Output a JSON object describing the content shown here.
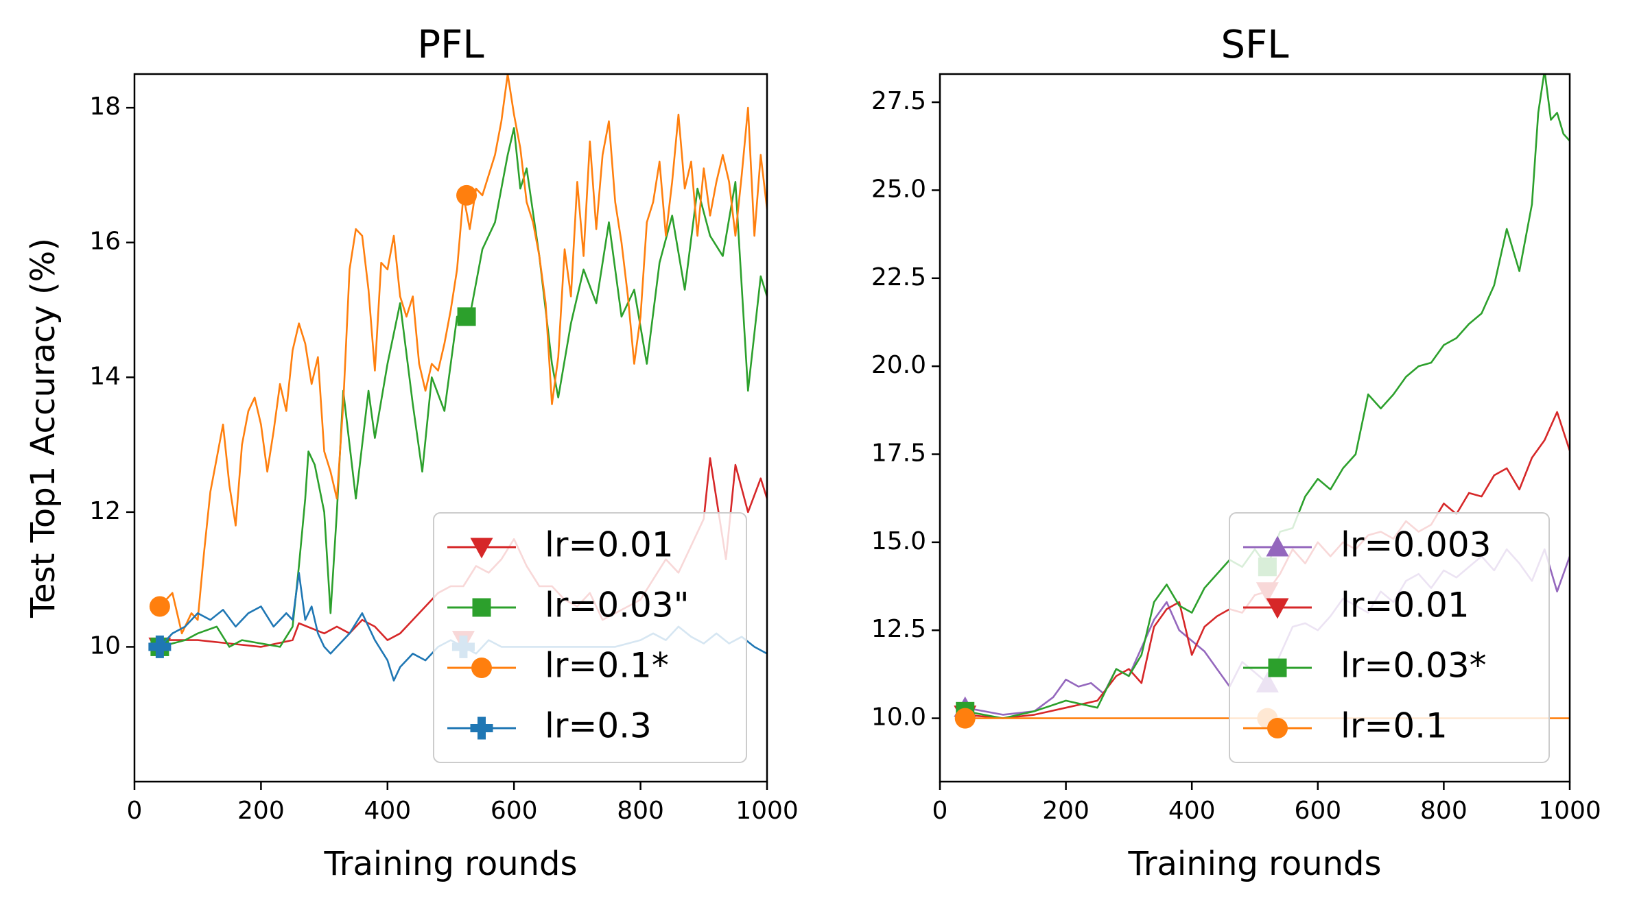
{
  "chart_data": [
    {
      "type": "line",
      "title": "PFL",
      "xlabel": "Training rounds",
      "ylabel": "Test Top1 Accuracy (%)",
      "xlim": [
        0,
        1000
      ],
      "ylim": [
        8.0,
        18.5
      ],
      "xticks": [
        0,
        200,
        400,
        600,
        800,
        1000
      ],
      "xtick_labels": [
        "0",
        "200",
        "400",
        "600",
        "800",
        "1000"
      ],
      "yticks": [
        10,
        12,
        14,
        16,
        18
      ],
      "ytick_labels": [
        "10",
        "12",
        "14",
        "16",
        "18"
      ],
      "grid": false,
      "legend_position": "lower-right",
      "series": [
        {
          "name": "lr=0.01",
          "color": "#d62728",
          "marker": "triangle-down",
          "marker_points": [
            [
              40,
              10.0
            ],
            [
              520,
              10.1
            ]
          ],
          "x": [
            40,
            100,
            150,
            200,
            250,
            260,
            300,
            320,
            340,
            360,
            380,
            400,
            420,
            440,
            460,
            480,
            500,
            520,
            540,
            560,
            580,
            600,
            620,
            640,
            660,
            680,
            700,
            720,
            740,
            760,
            780,
            800,
            820,
            840,
            860,
            880,
            900,
            910,
            920,
            935,
            950,
            970,
            990,
            1000
          ],
          "y": [
            10.1,
            10.1,
            10.05,
            10.0,
            10.1,
            10.35,
            10.2,
            10.3,
            10.2,
            10.4,
            10.3,
            10.1,
            10.2,
            10.4,
            10.6,
            10.8,
            10.9,
            10.9,
            11.2,
            11.1,
            11.3,
            11.6,
            11.2,
            10.9,
            10.9,
            10.7,
            10.6,
            10.8,
            10.4,
            10.5,
            10.6,
            10.7,
            11.0,
            11.3,
            11.1,
            11.5,
            11.9,
            12.8,
            12.2,
            11.3,
            12.7,
            12.0,
            12.5,
            12.2
          ]
        },
        {
          "name": "lr=0.03\"",
          "color": "#2ca02c",
          "marker": "square",
          "marker_points": [
            [
              40,
              10.0
            ],
            [
              525,
              14.9
            ]
          ],
          "x": [
            40,
            80,
            100,
            130,
            150,
            170,
            200,
            230,
            250,
            260,
            270,
            275,
            285,
            300,
            310,
            320,
            330,
            350,
            370,
            380,
            400,
            420,
            440,
            455,
            470,
            490,
            510,
            530,
            550,
            570,
            590,
            600,
            610,
            620,
            640,
            660,
            670,
            690,
            710,
            730,
            750,
            770,
            790,
            810,
            830,
            850,
            870,
            890,
            910,
            930,
            950,
            970,
            990,
            1000
          ],
          "y": [
            10.0,
            10.1,
            10.2,
            10.3,
            10.0,
            10.1,
            10.05,
            10.0,
            10.3,
            11.2,
            12.2,
            12.9,
            12.7,
            12.0,
            10.5,
            12.0,
            13.8,
            12.2,
            13.8,
            13.1,
            14.2,
            15.1,
            13.6,
            12.6,
            14.0,
            13.5,
            14.9,
            14.9,
            15.9,
            16.3,
            17.3,
            17.7,
            16.8,
            17.1,
            15.8,
            14.2,
            13.7,
            14.8,
            15.6,
            15.1,
            16.3,
            14.9,
            15.3,
            14.2,
            15.7,
            16.4,
            15.3,
            16.8,
            16.1,
            15.8,
            16.9,
            13.8,
            15.5,
            15.2
          ]
        },
        {
          "name": "lr=0.1*",
          "color": "#ff7f0e",
          "marker": "circle",
          "marker_points": [
            [
              40,
              10.6
            ],
            [
              525,
              16.7
            ]
          ],
          "x": [
            40,
            60,
            75,
            90,
            100,
            110,
            120,
            130,
            140,
            150,
            160,
            170,
            180,
            190,
            200,
            210,
            220,
            230,
            240,
            250,
            260,
            270,
            280,
            290,
            300,
            310,
            320,
            330,
            340,
            350,
            360,
            370,
            380,
            390,
            400,
            410,
            420,
            430,
            440,
            450,
            460,
            470,
            480,
            490,
            500,
            510,
            520,
            530,
            540,
            550,
            560,
            570,
            580,
            590,
            600,
            610,
            620,
            630,
            640,
            650,
            660,
            670,
            680,
            690,
            700,
            710,
            720,
            730,
            740,
            750,
            760,
            770,
            780,
            790,
            800,
            810,
            820,
            830,
            840,
            850,
            860,
            870,
            880,
            890,
            900,
            910,
            920,
            930,
            940,
            950,
            960,
            970,
            980,
            990,
            1000
          ],
          "y": [
            10.6,
            10.8,
            10.2,
            10.5,
            10.4,
            11.4,
            12.3,
            12.8,
            13.3,
            12.4,
            11.8,
            13.0,
            13.5,
            13.7,
            13.3,
            12.6,
            13.2,
            13.9,
            13.5,
            14.4,
            14.8,
            14.5,
            13.9,
            14.3,
            12.9,
            12.6,
            12.2,
            13.6,
            15.6,
            16.2,
            16.1,
            15.3,
            14.1,
            15.7,
            15.6,
            16.1,
            15.2,
            14.9,
            15.2,
            14.2,
            13.8,
            14.2,
            14.1,
            14.5,
            15.0,
            15.6,
            16.7,
            16.2,
            16.8,
            16.7,
            17.0,
            17.3,
            17.8,
            18.5,
            17.9,
            17.4,
            16.6,
            16.3,
            15.8,
            15.1,
            13.6,
            14.3,
            15.9,
            15.2,
            16.9,
            15.8,
            17.5,
            16.2,
            17.3,
            17.8,
            16.6,
            16.0,
            15.2,
            14.2,
            14.9,
            16.3,
            16.6,
            17.2,
            16.1,
            16.9,
            17.9,
            16.8,
            17.2,
            16.1,
            17.1,
            16.4,
            16.9,
            17.3,
            16.9,
            16.1,
            17.0,
            18.0,
            16.1,
            17.3,
            16.5
          ]
        },
        {
          "name": "lr=0.3",
          "color": "#1f77b4",
          "marker": "plus",
          "marker_points": [
            [
              40,
              10.0
            ],
            [
              520,
              10.0
            ]
          ],
          "x": [
            40,
            60,
            80,
            100,
            120,
            140,
            160,
            180,
            200,
            220,
            240,
            250,
            260,
            270,
            280,
            290,
            300,
            310,
            320,
            340,
            360,
            380,
            400,
            410,
            420,
            440,
            460,
            480,
            500,
            520,
            540,
            560,
            580,
            600,
            620,
            640,
            660,
            680,
            700,
            720,
            740,
            760,
            780,
            800,
            820,
            840,
            860,
            880,
            900,
            920,
            940,
            960,
            980,
            1000
          ],
          "y": [
            10.0,
            10.2,
            10.3,
            10.5,
            10.4,
            10.55,
            10.3,
            10.5,
            10.6,
            10.3,
            10.5,
            10.4,
            11.1,
            10.4,
            10.6,
            10.2,
            10.0,
            9.9,
            10.0,
            10.2,
            10.5,
            10.1,
            9.8,
            9.5,
            9.7,
            9.9,
            9.8,
            10.0,
            10.1,
            10.0,
            9.9,
            10.1,
            10.0,
            10.0,
            10.0,
            10.0,
            10.0,
            10.0,
            10.0,
            10.0,
            10.0,
            10.0,
            10.05,
            10.1,
            10.2,
            10.1,
            10.3,
            10.15,
            10.05,
            10.2,
            10.05,
            10.15,
            10.0,
            9.9
          ]
        }
      ]
    },
    {
      "type": "line",
      "title": "SFL",
      "xlabel": "Training rounds",
      "ylabel": "",
      "xlim": [
        0,
        1000
      ],
      "ylim": [
        8.2,
        28.3
      ],
      "xticks": [
        0,
        200,
        400,
        600,
        800,
        1000
      ],
      "xtick_labels": [
        "0",
        "200",
        "400",
        "600",
        "800",
        "1000"
      ],
      "yticks": [
        10.0,
        12.5,
        15.0,
        17.5,
        20.0,
        22.5,
        25.0,
        27.5
      ],
      "ytick_labels": [
        "10.0",
        "12.5",
        "15.0",
        "17.5",
        "20.0",
        "22.5",
        "25.0",
        "27.5"
      ],
      "grid": false,
      "legend_position": "lower-right",
      "series": [
        {
          "name": "lr=0.003",
          "color": "#9467bd",
          "marker": "triangle-up",
          "marker_points": [
            [
              40,
              10.3
            ],
            [
              520,
              11.0
            ]
          ],
          "x": [
            40,
            100,
            150,
            180,
            200,
            220,
            240,
            260,
            280,
            300,
            320,
            340,
            360,
            380,
            400,
            420,
            440,
            460,
            480,
            500,
            520,
            540,
            560,
            580,
            600,
            620,
            640,
            660,
            680,
            700,
            720,
            740,
            760,
            780,
            800,
            820,
            840,
            860,
            880,
            900,
            920,
            940,
            960,
            980,
            1000
          ],
          "y": [
            10.3,
            10.1,
            10.2,
            10.6,
            11.1,
            10.9,
            11.0,
            10.7,
            11.4,
            11.2,
            12.0,
            12.8,
            13.3,
            12.5,
            12.2,
            11.9,
            11.4,
            10.9,
            11.6,
            11.3,
            11.0,
            11.8,
            12.6,
            12.7,
            12.5,
            12.9,
            13.4,
            13.2,
            13.0,
            13.6,
            13.3,
            13.9,
            14.1,
            13.7,
            14.2,
            14.0,
            14.3,
            14.6,
            14.2,
            14.8,
            14.4,
            13.9,
            14.8,
            13.6,
            14.6
          ]
        },
        {
          "name": "lr=0.01",
          "color": "#d62728",
          "marker": "triangle-down",
          "marker_points": [
            [
              40,
              10.1
            ],
            [
              520,
              13.6
            ]
          ],
          "x": [
            40,
            100,
            150,
            200,
            250,
            280,
            300,
            320,
            340,
            360,
            380,
            400,
            420,
            440,
            460,
            480,
            500,
            520,
            540,
            560,
            580,
            600,
            620,
            640,
            660,
            680,
            700,
            720,
            740,
            760,
            780,
            800,
            820,
            840,
            860,
            880,
            900,
            920,
            940,
            960,
            980,
            1000
          ],
          "y": [
            10.1,
            10.0,
            10.1,
            10.3,
            10.5,
            11.2,
            11.4,
            11.0,
            12.6,
            13.1,
            13.3,
            11.8,
            12.6,
            12.9,
            13.1,
            13.0,
            13.5,
            13.6,
            14.1,
            14.8,
            14.4,
            15.0,
            14.6,
            15.0,
            14.8,
            15.2,
            15.3,
            15.1,
            15.6,
            15.3,
            15.5,
            16.1,
            15.8,
            16.4,
            16.3,
            16.9,
            17.1,
            16.5,
            17.4,
            17.9,
            18.7,
            17.6
          ]
        },
        {
          "name": "lr=0.03*",
          "color": "#2ca02c",
          "marker": "square",
          "marker_points": [
            [
              40,
              10.2
            ],
            [
              520,
              14.3
            ]
          ],
          "x": [
            40,
            100,
            150,
            200,
            250,
            280,
            300,
            320,
            340,
            360,
            380,
            400,
            420,
            440,
            460,
            480,
            500,
            520,
            540,
            560,
            580,
            600,
            620,
            640,
            660,
            680,
            700,
            720,
            740,
            760,
            780,
            800,
            820,
            840,
            860,
            880,
            900,
            920,
            940,
            950,
            960,
            970,
            980,
            990,
            1000
          ],
          "y": [
            10.2,
            10.0,
            10.2,
            10.5,
            10.3,
            11.4,
            11.2,
            11.8,
            13.3,
            13.8,
            13.2,
            13.0,
            13.7,
            14.1,
            14.5,
            14.3,
            14.8,
            14.3,
            15.3,
            15.4,
            16.3,
            16.8,
            16.5,
            17.1,
            17.5,
            19.2,
            18.8,
            19.2,
            19.7,
            20.0,
            20.1,
            20.6,
            20.8,
            21.2,
            21.5,
            22.3,
            23.9,
            22.7,
            24.6,
            27.2,
            28.4,
            27.0,
            27.2,
            26.6,
            26.4
          ]
        },
        {
          "name": "lr=0.1",
          "color": "#ff7f0e",
          "marker": "circle",
          "marker_points": [
            [
              40,
              10.0
            ],
            [
              520,
              10.0
            ]
          ],
          "x": [
            40,
            1000
          ],
          "y": [
            10.0,
            10.0
          ]
        }
      ]
    }
  ]
}
